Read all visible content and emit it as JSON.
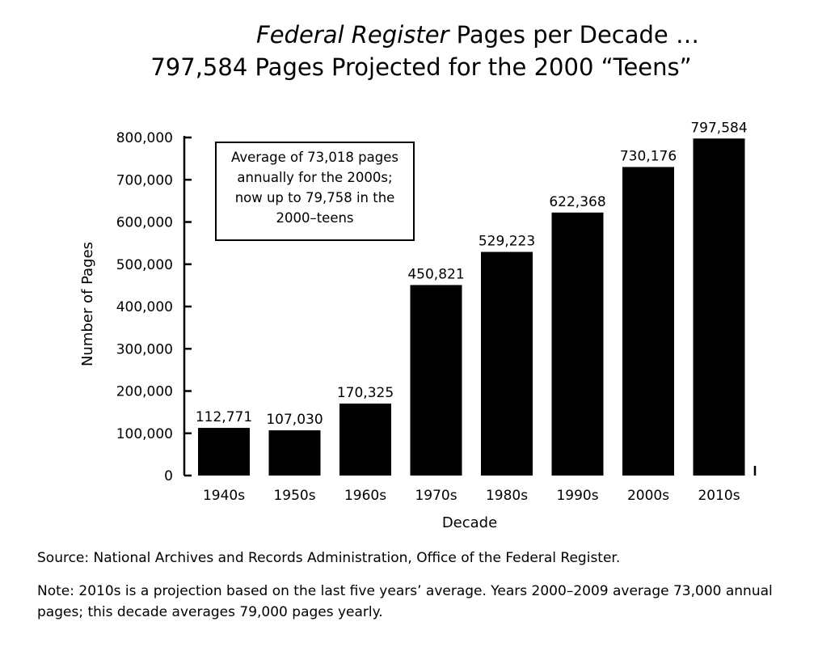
{
  "title_line1": {
    "italic": "Federal Register",
    "rest": " Pages per Decade …"
  },
  "title_line2": "797,584 Pages Projected for the 2000 “Teens”",
  "annotation": [
    "Average of 73,018 pages",
    "annually for the 2000s;",
    "now up to 79,758 in the",
    "2000–teens"
  ],
  "source": "Source: National Archives and Records Administration, Office of the Federal Register.",
  "note": "Note: 2010s is a projection based on the last five years’ average. Years 2000–2009 average 73,000 annual pages; this decade averages 79,000 pages yearly.",
  "chart_data": {
    "type": "bar",
    "categories": [
      "1940s",
      "1950s",
      "1960s",
      "1970s",
      "1980s",
      "1990s",
      "2000s",
      "2010s"
    ],
    "values": [
      112771,
      107030,
      170325,
      450821,
      529223,
      622368,
      730176,
      797584
    ],
    "data_labels": [
      "112,771",
      "107,030",
      "170,325",
      "450,821",
      "529,223",
      "622,368",
      "730,176",
      "797,584"
    ],
    "xlabel": "Decade",
    "ylabel": "Number of Pages",
    "ylim": [
      0,
      800000
    ],
    "yticks": [
      0,
      100000,
      200000,
      300000,
      400000,
      500000,
      600000,
      700000,
      800000
    ],
    "ytick_labels": [
      "0",
      "100,000",
      "200,000",
      "300,000",
      "400,000",
      "500,000",
      "600,000",
      "700,000",
      "800,000"
    ],
    "bar_color": "#000000",
    "grid": false
  }
}
